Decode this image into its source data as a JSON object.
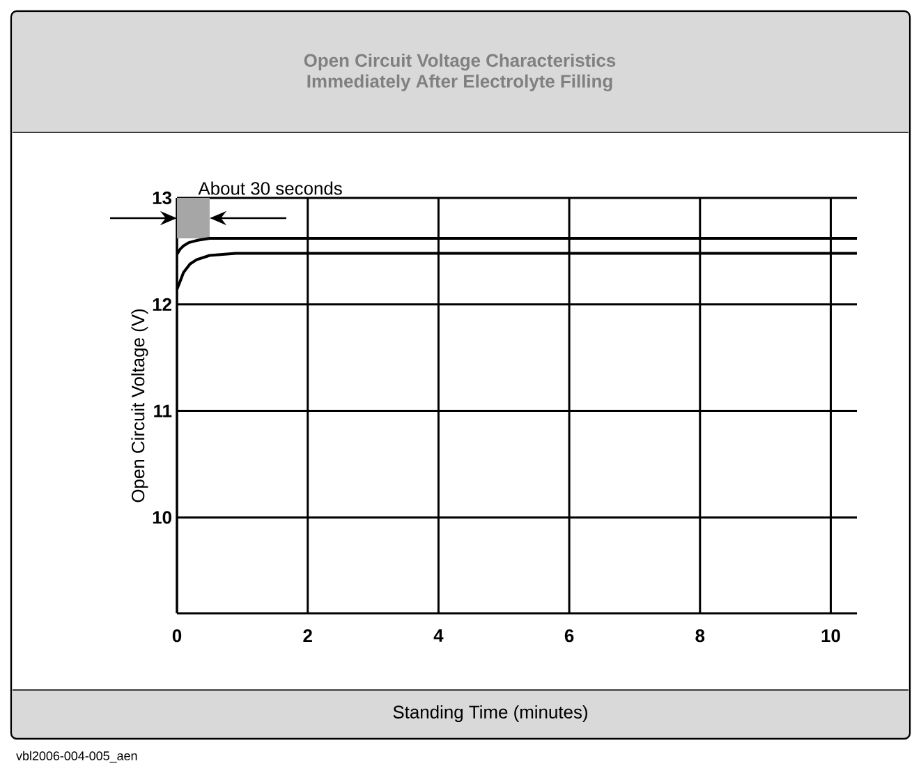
{
  "chart_data": {
    "type": "line",
    "title": "Open Circuit Voltage Characteristics\nImmediately After Electrolyte Filling",
    "xlabel": "Standing Time (minutes)",
    "ylabel": "Open Circuit Voltage (V)",
    "xlim": [
      0,
      10.4
    ],
    "xticks": [
      0,
      2,
      4,
      6,
      8,
      10
    ],
    "ylim": [
      9.1,
      13
    ],
    "yticks": [
      10,
      11,
      12,
      13
    ],
    "grid": true,
    "line_style": "solid",
    "marker": "none",
    "series": [
      {
        "color": "#000000",
        "x": [
          0,
          0.05,
          0.1,
          0.18,
          0.3,
          0.5,
          0.8,
          10.4
        ],
        "values": [
          12.47,
          12.52,
          12.55,
          12.58,
          12.6,
          12.62,
          12.62,
          12.62
        ]
      },
      {
        "color": "#000000",
        "x": [
          0,
          0.05,
          0.1,
          0.2,
          0.3,
          0.5,
          0.7,
          0.9,
          10.4
        ],
        "values": [
          12.14,
          12.22,
          12.3,
          12.38,
          12.42,
          12.46,
          12.47,
          12.48,
          12.48
        ]
      }
    ],
    "bands": [
      {
        "axis": "x",
        "from": 0,
        "to": 0.5,
        "label": "About 30 seconds",
        "color": "#a6a6a6"
      }
    ],
    "annotations": [
      "vbl2006-004-005_aen"
    ]
  }
}
